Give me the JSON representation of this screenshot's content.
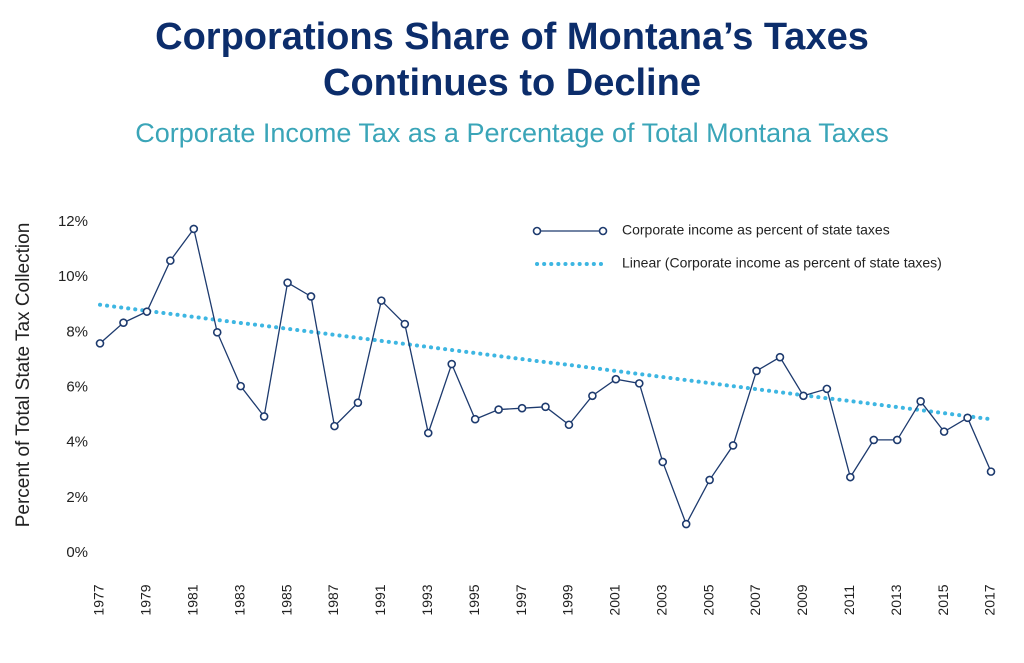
{
  "chart_data": {
    "type": "line",
    "title": "Corporations Share of Montana’s Taxes Continues to Decline",
    "subtitle": "Corporate Income Tax as a Percentage of Total Montana Taxes",
    "y_label": "Percent of Total State Tax Collection",
    "categories": [
      "1977",
      null,
      "1979",
      null,
      "1981",
      null,
      "1983",
      null,
      "1985",
      null,
      "1987",
      null,
      "1991",
      null,
      "1993",
      null,
      "1995",
      null,
      "1997",
      null,
      "1999",
      null,
      "2001",
      null,
      "2003",
      null,
      "2005",
      null,
      "2007",
      null,
      "2009",
      null,
      "2011",
      null,
      "2013",
      null,
      "2015",
      null,
      "2017"
    ],
    "series": [
      {
        "name": "Corporate income as percent of state taxes",
        "color": "#1d3a6e",
        "style": "markers",
        "values": [
          7.6,
          8.35,
          8.75,
          10.6,
          11.75,
          8.0,
          6.05,
          4.95,
          9.8,
          9.3,
          4.6,
          5.45,
          9.15,
          8.3,
          4.35,
          6.85,
          4.85,
          5.2,
          5.25,
          5.3,
          4.65,
          5.7,
          6.3,
          6.15,
          3.3,
          1.05,
          2.65,
          3.9,
          6.6,
          7.1,
          5.7,
          5.95,
          2.75,
          4.1,
          4.1,
          5.5,
          4.4,
          4.9,
          2.95
        ]
      },
      {
        "name": "Linear (Corporate income as percent of state taxes)",
        "color": "#3db6e2",
        "style": "dotted",
        "values": [
          9.0,
          8.89,
          8.78,
          8.67,
          8.56,
          8.45,
          8.34,
          8.24,
          8.13,
          8.02,
          7.91,
          7.8,
          7.69,
          7.58,
          7.47,
          7.36,
          7.25,
          7.14,
          7.03,
          6.92,
          6.82,
          6.71,
          6.6,
          6.49,
          6.38,
          6.27,
          6.16,
          6.05,
          5.94,
          5.83,
          5.72,
          5.61,
          5.51,
          5.4,
          5.29,
          5.18,
          5.07,
          4.96,
          4.85
        ]
      }
    ],
    "ylim": [
      0,
      12
    ],
    "yticks": [
      {
        "value": 0,
        "label": "0%"
      },
      {
        "value": 2,
        "label": "2%"
      },
      {
        "value": 4,
        "label": "4%"
      },
      {
        "value": 6,
        "label": "6%"
      },
      {
        "value": 8,
        "label": "8%"
      },
      {
        "value": 10,
        "label": "10%"
      },
      {
        "value": 12,
        "label": "12%"
      }
    ],
    "grid": false,
    "legend": "top-right"
  }
}
